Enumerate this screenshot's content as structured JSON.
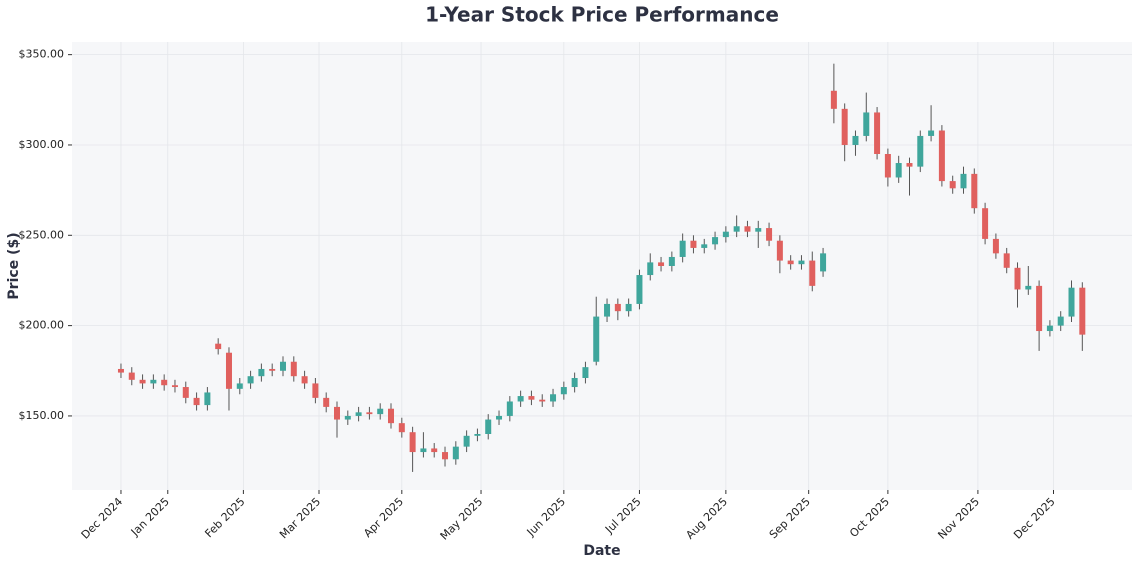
{
  "chart_data": {
    "type": "candlestick",
    "title": "1-Year Stock Price Performance",
    "xlabel": "Date",
    "ylabel": "Price ($)",
    "x": [
      0,
      3,
      6,
      9,
      12,
      15,
      18,
      21,
      24,
      27,
      30,
      33,
      36,
      39,
      42,
      45,
      48,
      51,
      54,
      57,
      60,
      63,
      66,
      69,
      72,
      75,
      78,
      81,
      84,
      87,
      90,
      93,
      96,
      99,
      102,
      105,
      108,
      111,
      114,
      117,
      120,
      123,
      126,
      129,
      132,
      135,
      138,
      141,
      144,
      147,
      150,
      153,
      156,
      159,
      162,
      165,
      168,
      171,
      174,
      177,
      180,
      183,
      186,
      189,
      192,
      195,
      198,
      201,
      204,
      207,
      210,
      213,
      216,
      219,
      222,
      225,
      228,
      231,
      234,
      237,
      240,
      243,
      246,
      249,
      252,
      255,
      258,
      261,
      264,
      267
    ],
    "open": [
      176,
      174,
      170,
      168,
      170,
      167,
      166,
      160,
      156,
      190,
      185,
      165,
      168,
      172,
      176,
      175,
      180,
      172,
      168,
      160,
      155,
      148,
      150,
      152,
      151,
      154,
      146,
      141,
      130,
      132,
      130,
      126,
      133,
      139,
      140,
      148,
      150,
      158,
      161,
      159,
      158,
      162,
      166,
      171,
      180,
      205,
      212,
      208,
      212,
      228,
      235,
      233,
      238,
      247,
      243,
      245,
      249,
      252,
      255,
      252,
      254,
      247,
      236,
      234,
      236,
      230,
      330,
      320,
      300,
      305,
      318,
      295,
      282,
      290,
      288,
      305,
      308,
      280,
      276,
      284,
      265,
      248,
      240,
      232,
      220,
      222,
      197,
      200,
      205,
      221
    ],
    "high": [
      179,
      177,
      173,
      173,
      173,
      170,
      169,
      163,
      166,
      193,
      188,
      171,
      175,
      179,
      179,
      183,
      183,
      175,
      171,
      163,
      158,
      153,
      155,
      155,
      157,
      157,
      149,
      144,
      141,
      135,
      133,
      136,
      142,
      143,
      151,
      153,
      161,
      164,
      164,
      162,
      165,
      169,
      174,
      180,
      216,
      215,
      215,
      215,
      231,
      240,
      238,
      241,
      251,
      250,
      248,
      252,
      255,
      261,
      258,
      258,
      257,
      250,
      239,
      239,
      241,
      243,
      345,
      323,
      308,
      329,
      321,
      298,
      294,
      293,
      308,
      322,
      311,
      283,
      288,
      287,
      268,
      251,
      243,
      235,
      233,
      225,
      203,
      208,
      225,
      224
    ],
    "low": [
      171,
      167,
      165,
      165,
      164,
      163,
      157,
      153,
      153,
      184,
      153,
      162,
      165,
      169,
      172,
      172,
      169,
      165,
      157,
      152,
      138,
      145,
      147,
      148,
      148,
      143,
      138,
      119,
      127,
      127,
      122,
      123,
      130,
      136,
      137,
      145,
      147,
      155,
      156,
      155,
      155,
      159,
      163,
      168,
      178,
      202,
      203,
      205,
      209,
      225,
      230,
      230,
      235,
      240,
      240,
      242,
      246,
      249,
      249,
      243,
      244,
      229,
      231,
      231,
      219,
      227,
      312,
      291,
      294,
      302,
      292,
      277,
      279,
      272,
      285,
      302,
      277,
      273,
      273,
      262,
      245,
      237,
      229,
      210,
      217,
      186,
      194,
      197,
      202,
      186
    ],
    "close": [
      174,
      170,
      168,
      170,
      167,
      166,
      160,
      156,
      163,
      187,
      165,
      168,
      172,
      176,
      175,
      180,
      172,
      168,
      160,
      155,
      148,
      150,
      152,
      151,
      154,
      146,
      141,
      130,
      132,
      130,
      126,
      133,
      139,
      140,
      148,
      150,
      158,
      161,
      159,
      158,
      162,
      166,
      171,
      177,
      205,
      212,
      208,
      212,
      228,
      235,
      233,
      238,
      247,
      243,
      245,
      249,
      252,
      255,
      252,
      254,
      247,
      236,
      234,
      236,
      222,
      240,
      320,
      300,
      305,
      318,
      295,
      282,
      290,
      288,
      305,
      308,
      280,
      276,
      284,
      265,
      248,
      240,
      232,
      220,
      222,
      197,
      200,
      205,
      221,
      195
    ],
    "up_color": "#3fa69c",
    "down_color": "#e0605e",
    "xlim": [
      -13.6,
      280.8
    ],
    "ylim": [
      109,
      357
    ],
    "xticks": [
      {
        "value": 0,
        "label": "Dec 2024"
      },
      {
        "value": 13,
        "label": "Jan 2025"
      },
      {
        "value": 34,
        "label": "Feb 2025"
      },
      {
        "value": 55,
        "label": "Mar 2025"
      },
      {
        "value": 78,
        "label": "Apr 2025"
      },
      {
        "value": 100,
        "label": "May 2025"
      },
      {
        "value": 123,
        "label": "Jun 2025"
      },
      {
        "value": 144,
        "label": "Jul 2025"
      },
      {
        "value": 168,
        "label": "Aug 2025"
      },
      {
        "value": 191,
        "label": "Sep 2025"
      },
      {
        "value": 213,
        "label": "Oct 2025"
      },
      {
        "value": 238,
        "label": "Nov 2025"
      },
      {
        "value": 259,
        "label": "Dec 2025"
      }
    ],
    "yticks": [
      {
        "value": 150,
        "label": "$150.00"
      },
      {
        "value": 200,
        "label": "$200.00"
      },
      {
        "value": 250,
        "label": "$250.00"
      },
      {
        "value": 300,
        "label": "$300.00"
      },
      {
        "value": 350,
        "label": "$350.00"
      }
    ],
    "grid": true
  }
}
